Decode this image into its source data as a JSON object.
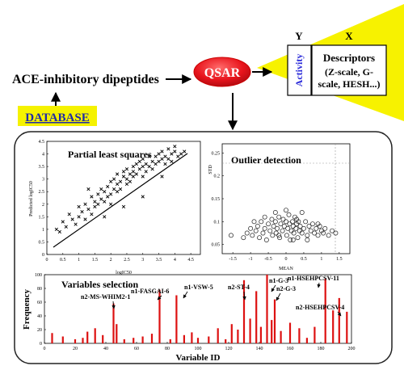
{
  "header": {
    "source_label": "ACE-inhibitory dipeptides",
    "database_label": "DATABASE",
    "qsar_label": "QSAR",
    "y_label": "Y",
    "x_label": "X",
    "activity_label": "Activity",
    "descriptors_title": "Descriptors",
    "descriptors_lines": [
      "(Z-scale, G-",
      "scale, HESH...)"
    ]
  },
  "colors": {
    "qsar_fill": "#e8141c",
    "database_fill": "#f5f200",
    "database_text": "#1f2aa8",
    "activity_text": "#2b2bd9",
    "beam_fill": "#f7f200",
    "bar_color": "#dd1111",
    "panel_border": "#222222"
  },
  "panels": {
    "pls": {
      "title": "Partial least squares",
      "xlabel": "logIC50",
      "ylabel": "Predicted logIC50",
      "xticks": [
        "0",
        "0.5",
        "1",
        "1.5",
        "2",
        "2.5",
        "3",
        "3.5",
        "4",
        "4.5"
      ],
      "yticks": [
        "0",
        "0.5",
        "1",
        "1.5",
        "2",
        "2.5",
        "3",
        "3.5",
        "4",
        "4.5"
      ]
    },
    "outlier": {
      "title": "Outlier detection",
      "xlabel": "MEAN",
      "ylabel": "STD",
      "xticks": [
        "-1.5",
        "-1",
        "-0.5",
        "0",
        "0.5",
        "1",
        "1.5"
      ],
      "yticks": [
        "0.05",
        "0.1",
        "0.15",
        "0.2",
        "0.25"
      ]
    },
    "variables": {
      "title": "Variables selection",
      "xlabel": "Variable ID",
      "ylabel": "Frequency",
      "xticks": [
        "0",
        "20",
        "40",
        "60",
        "80",
        "100",
        "120",
        "140",
        "160",
        "180",
        "200"
      ],
      "yticks": [
        "0",
        "20",
        "40",
        "60",
        "80",
        "100"
      ],
      "annotations": [
        "n2-MS-WHIM2-1",
        "n1-FASGAI-6",
        "n1-VSW-5",
        "n2-ST-4",
        "n1-G-3",
        "n2-G-3",
        "n1-HSEHPCSV-11",
        "n2-HSEHPCSV-4"
      ]
    }
  },
  "chart_data": [
    {
      "type": "scatter",
      "title": "Partial least squares",
      "xlabel": "logIC50",
      "ylabel": "Predicted logIC50",
      "xlim": [
        0,
        4.8
      ],
      "ylim": [
        0,
        4.5
      ],
      "series": [
        {
          "x": [
            0.3,
            0.4,
            0.5,
            0.6,
            0.7,
            0.8,
            0.9,
            1.0,
            1.0,
            1.1,
            1.2,
            1.2,
            1.3,
            1.4,
            1.4,
            1.5,
            1.5,
            1.6,
            1.6,
            1.7,
            1.7,
            1.8,
            1.8,
            1.9,
            1.9,
            2.0,
            2.0,
            2.0,
            2.1,
            2.1,
            2.2,
            2.2,
            2.2,
            2.3,
            2.3,
            2.4,
            2.4,
            2.5,
            2.5,
            2.5,
            2.6,
            2.6,
            2.7,
            2.7,
            2.7,
            2.8,
            2.8,
            2.9,
            2.9,
            3.0,
            3.0,
            3.0,
            3.1,
            3.1,
            3.2,
            3.2,
            3.3,
            3.3,
            3.4,
            3.4,
            3.5,
            3.5,
            3.6,
            3.6,
            3.7,
            3.7,
            3.8,
            3.8,
            3.9,
            3.9,
            4.0,
            4.0,
            4.1,
            4.2,
            4.3,
            1.3,
            1.8,
            2.4,
            3.0,
            3.6
          ],
          "y": [
            1.0,
            0.9,
            1.3,
            1.1,
            1.6,
            1.4,
            1.2,
            1.9,
            1.5,
            1.7,
            2.0,
            1.4,
            1.8,
            2.3,
            1.6,
            2.1,
            1.9,
            2.4,
            2.0,
            2.2,
            2.6,
            2.5,
            2.1,
            2.7,
            2.3,
            2.9,
            2.4,
            2.0,
            2.6,
            3.0,
            2.8,
            2.5,
            3.2,
            2.9,
            2.6,
            3.1,
            3.3,
            2.8,
            3.4,
            3.0,
            3.2,
            2.9,
            3.5,
            3.1,
            3.3,
            3.6,
            3.2,
            3.4,
            3.7,
            3.5,
            3.1,
            3.8,
            3.6,
            3.3,
            3.9,
            3.5,
            3.7,
            3.4,
            3.9,
            3.6,
            4.0,
            3.7,
            3.8,
            4.1,
            3.9,
            3.6,
            4.2,
            3.8,
            4.0,
            3.7,
            4.1,
            4.3,
            3.9,
            4.0,
            4.1,
            2.6,
            1.5,
            1.9,
            2.3,
            3.1
          ]
        }
      ]
    },
    {
      "type": "scatter",
      "title": "Outlier detection",
      "xlabel": "MEAN",
      "ylabel": "STD",
      "xlim": [
        -1.8,
        1.8
      ],
      "ylim": [
        0.03,
        0.27
      ],
      "series": [
        {
          "x": [
            -1.55,
            -1.2,
            -1.1,
            -1.0,
            -0.95,
            -0.85,
            -0.8,
            -0.75,
            -0.7,
            -0.65,
            -0.6,
            -0.55,
            -0.5,
            -0.45,
            -0.4,
            -0.38,
            -0.35,
            -0.3,
            -0.28,
            -0.25,
            -0.2,
            -0.18,
            -0.15,
            -0.1,
            -0.08,
            -0.05,
            0.0,
            0.02,
            0.05,
            0.08,
            0.1,
            0.12,
            0.15,
            0.18,
            0.2,
            0.22,
            0.25,
            0.28,
            0.3,
            0.33,
            0.35,
            0.38,
            0.4,
            0.45,
            0.5,
            0.55,
            0.6,
            0.65,
            0.7,
            0.75,
            0.8,
            0.85,
            0.9,
            0.95,
            1.0,
            1.05,
            1.1,
            1.2,
            1.3,
            1.4,
            -0.6,
            -0.3,
            0.0,
            0.3,
            0.6,
            -0.9,
            0.9,
            -0.2,
            0.2,
            0.45
          ],
          "y": [
            0.07,
            0.065,
            0.075,
            0.085,
            0.07,
            0.08,
            0.09,
            0.065,
            0.1,
            0.075,
            0.085,
            0.06,
            0.095,
            0.08,
            0.105,
            0.07,
            0.09,
            0.1,
            0.075,
            0.085,
            0.11,
            0.065,
            0.095,
            0.08,
            0.105,
            0.09,
            0.1,
            0.07,
            0.085,
            0.115,
            0.095,
            0.06,
            0.08,
            0.1,
            0.09,
            0.075,
            0.11,
            0.085,
            0.095,
            0.065,
            0.1,
            0.08,
            0.09,
            0.075,
            0.085,
            0.1,
            0.07,
            0.09,
            0.08,
            0.095,
            0.075,
            0.085,
            0.07,
            0.09,
            0.08,
            0.075,
            0.085,
            0.07,
            0.08,
            0.075,
            0.11,
            0.12,
            0.125,
            0.105,
            0.06,
            0.1,
            0.095,
            0.07,
            0.06,
            0.12
          ]
        }
      ]
    },
    {
      "type": "bar",
      "title": "Variables selection",
      "xlabel": "Variable ID",
      "ylabel": "Frequency",
      "xlim": [
        0,
        200
      ],
      "ylim": [
        0,
        100
      ],
      "x": [
        5,
        12,
        20,
        25,
        28,
        33,
        38,
        45,
        47,
        52,
        58,
        64,
        70,
        75,
        82,
        86,
        91,
        96,
        100,
        107,
        113,
        118,
        122,
        126,
        130,
        134,
        138,
        141,
        145,
        148,
        150,
        154,
        160,
        166,
        171,
        176,
        183,
        188,
        192,
        197
      ],
      "values": [
        15,
        10,
        6,
        8,
        17,
        22,
        12,
        58,
        28,
        6,
        8,
        10,
        14,
        78,
        6,
        70,
        12,
        16,
        8,
        10,
        22,
        6,
        28,
        20,
        92,
        36,
        76,
        24,
        100,
        34,
        64,
        18,
        30,
        22,
        8,
        24,
        94,
        48,
        66,
        46
      ]
    }
  ]
}
